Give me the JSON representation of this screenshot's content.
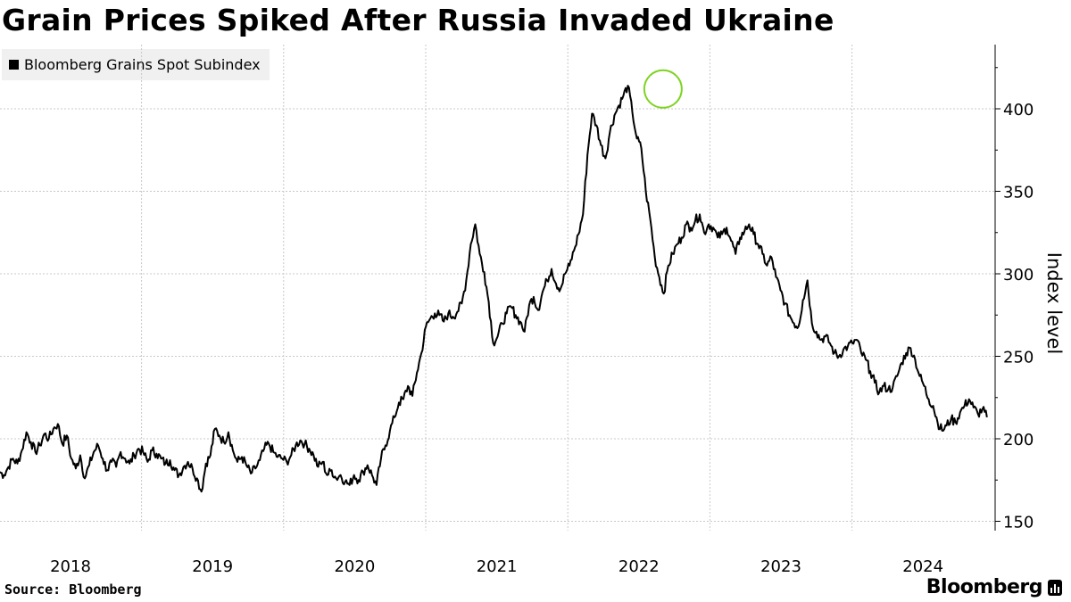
{
  "title": "Grain Prices Spiked After Russia Invaded Ukraine",
  "legend": {
    "label": "Bloomberg Grains Spot Subindex"
  },
  "source": "Source: Bloomberg",
  "brand": "Bloomberg",
  "chart_data": {
    "type": "line",
    "title": "Grain Prices Spiked After Russia Invaded Ukraine",
    "xlabel": "",
    "ylabel": "Index level",
    "x_start": 2017.5,
    "x_end": 2024.45,
    "xlim": [
      2017.5,
      2024.45
    ],
    "ylim": [
      145,
      435
    ],
    "yticks": [
      150,
      200,
      250,
      300,
      350,
      400
    ],
    "xticks": [
      {
        "label": "2018",
        "value": 2018.0
      },
      {
        "label": "2019",
        "value": 2019.0
      },
      {
        "label": "2020",
        "value": 2020.0
      },
      {
        "label": "2021",
        "value": 2021.0
      },
      {
        "label": "2022",
        "value": 2022.0
      },
      {
        "label": "2023",
        "value": 2023.0
      },
      {
        "label": "2024",
        "value": 2024.0
      }
    ],
    "year_gridlines": [
      2018.5,
      2019.5,
      2020.5,
      2021.5,
      2022.5,
      2023.5
    ],
    "highlight": {
      "x": 2022.17,
      "y": 412,
      "color": "#7ed321",
      "note": "peak after invasion"
    },
    "line_color": "#000000",
    "series": [
      {
        "name": "Bloomberg Grains Spot Subindex",
        "values": [
          180,
          178,
          183,
          188,
          185,
          193,
          204,
          198,
          192,
          196,
          203,
          200,
          206,
          209,
          197,
          202,
          188,
          182,
          190,
          176,
          184,
          192,
          196,
          188,
          181,
          186,
          183,
          192,
          188,
          185,
          190,
          194,
          192,
          186,
          193,
          191,
          188,
          185,
          187,
          181,
          178,
          183,
          186,
          182,
          176,
          168,
          185,
          190,
          206,
          202,
          198,
          204,
          193,
          186,
          189,
          184,
          179,
          182,
          187,
          194,
          197,
          192,
          189,
          188,
          186,
          190,
          196,
          199,
          197,
          194,
          190,
          183,
          186,
          178,
          181,
          176,
          178,
          174,
          172,
          178,
          175,
          180,
          184,
          178,
          172,
          188,
          196,
          205,
          213,
          222,
          224,
          232,
          226,
          240,
          252,
          268,
          273,
          276,
          275,
          271,
          276,
          274,
          277,
          282,
          296,
          318,
          330,
          312,
          301,
          283,
          258,
          262,
          270,
          276,
          280,
          275,
          271,
          265,
          281,
          286,
          278,
          289,
          296,
          303,
          294,
          291,
          300,
          305,
          314,
          324,
          336,
          372,
          397,
          390,
          378,
          370,
          386,
          396,
          402,
          408,
          414,
          398,
          382,
          376,
          350,
          333,
          310,
          298,
          288,
          305,
          312,
          318,
          322,
          330,
          328,
          332,
          336,
          325,
          330,
          328,
          322,
          324,
          328,
          320,
          312,
          322,
          326,
          330,
          324,
          318,
          312,
          305,
          310,
          298,
          290,
          282,
          275,
          270,
          268,
          284,
          296,
          270,
          265,
          260,
          262,
          258,
          252,
          250,
          254,
          256,
          258,
          260,
          252,
          248,
          241,
          234,
          228,
          232,
          230,
          231,
          238,
          246,
          252,
          255,
          248,
          238,
          232,
          224,
          220,
          210,
          205,
          208,
          212,
          210,
          216,
          220,
          224,
          219,
          215,
          218,
          213
        ]
      }
    ]
  }
}
